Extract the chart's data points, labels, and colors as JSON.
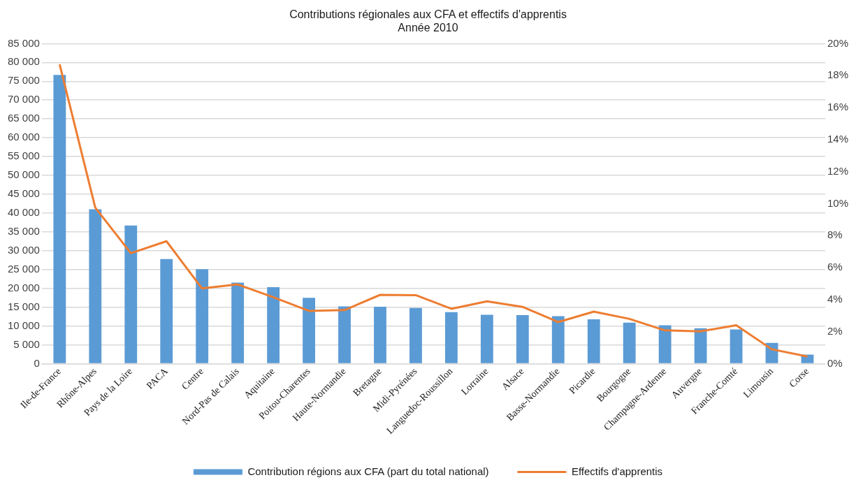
{
  "chart_data": {
    "type": "bar",
    "title": "Contributions régionales aux CFA et effectifs d'apprentis",
    "subtitle": "Année 2010",
    "categories": [
      "Ile-de-France",
      "Rhône-Alpes",
      "Pays de la Loire",
      "PACA",
      "Centre",
      "Nord-Pas de Calais",
      "Aquitaine",
      "Poitou-Charentes",
      "Haute-Normandie",
      "Bretagne",
      "Midi-Pyrénées",
      "Languedoc-Roussillon",
      "Lorraine",
      "Alsace",
      "Basse-Normandie",
      "Picardie",
      "Bourgogne",
      "Champagne-Ardenne",
      "Auvergne",
      "Franche-Comté",
      "Limousin",
      "Corse"
    ],
    "series": [
      {
        "name": "Contribution régions aux CFA (part du total national)",
        "color": "#5b9bd5",
        "values": [
          76700,
          41000,
          36700,
          27800,
          25100,
          21500,
          20300,
          17500,
          15200,
          15100,
          14800,
          13700,
          13000,
          12900,
          12600,
          11800,
          10900,
          10200,
          9400,
          9100,
          5500,
          2400
        ]
      },
      {
        "name": "Effectifs d'apprentis",
        "type": "line",
        "axis": "y2",
        "color": "#ed7d31",
        "marker": "none",
        "values": [
          18.7,
          9.75,
          6.9,
          7.65,
          4.7,
          4.95,
          4.15,
          3.3,
          3.35,
          4.3,
          4.28,
          3.43,
          3.9,
          3.55,
          2.6,
          3.25,
          2.8,
          2.08,
          2.02,
          2.4,
          0.9,
          0.45
        ]
      }
    ],
    "ylim": [
      0,
      85000
    ],
    "yticks": [
      {
        "value": 0,
        "label": "0"
      },
      {
        "value": 5000,
        "label": "5 000"
      },
      {
        "value": 10000,
        "label": "10 000"
      },
      {
        "value": 15000,
        "label": "15 000"
      },
      {
        "value": 20000,
        "label": "20 000"
      },
      {
        "value": 25000,
        "label": "25 000"
      },
      {
        "value": 30000,
        "label": "30 000"
      },
      {
        "value": 35000,
        "label": "35 000"
      },
      {
        "value": 40000,
        "label": "40 000"
      },
      {
        "value": 45000,
        "label": "45 000"
      },
      {
        "value": 50000,
        "label": "50 000"
      },
      {
        "value": 55000,
        "label": "55 000"
      },
      {
        "value": 60000,
        "label": "60 000"
      },
      {
        "value": 65000,
        "label": "65 000"
      },
      {
        "value": 70000,
        "label": "70 000"
      },
      {
        "value": 75000,
        "label": "75 000"
      },
      {
        "value": 80000,
        "label": "80 000"
      },
      {
        "value": 85000,
        "label": "85 000"
      }
    ],
    "y2lim": [
      0,
      20
    ],
    "y2ticks": [
      {
        "value": 0,
        "label": "0%"
      },
      {
        "value": 2,
        "label": "2%"
      },
      {
        "value": 4,
        "label": "4%"
      },
      {
        "value": 6,
        "label": "6%"
      },
      {
        "value": 8,
        "label": "8%"
      },
      {
        "value": 10,
        "label": "10%"
      },
      {
        "value": 12,
        "label": "12%"
      },
      {
        "value": 14,
        "label": "14%"
      },
      {
        "value": 16,
        "label": "16%"
      },
      {
        "value": 18,
        "label": "18%"
      },
      {
        "value": 20,
        "label": "20%"
      }
    ],
    "grid": "y",
    "legend": "bottom"
  }
}
